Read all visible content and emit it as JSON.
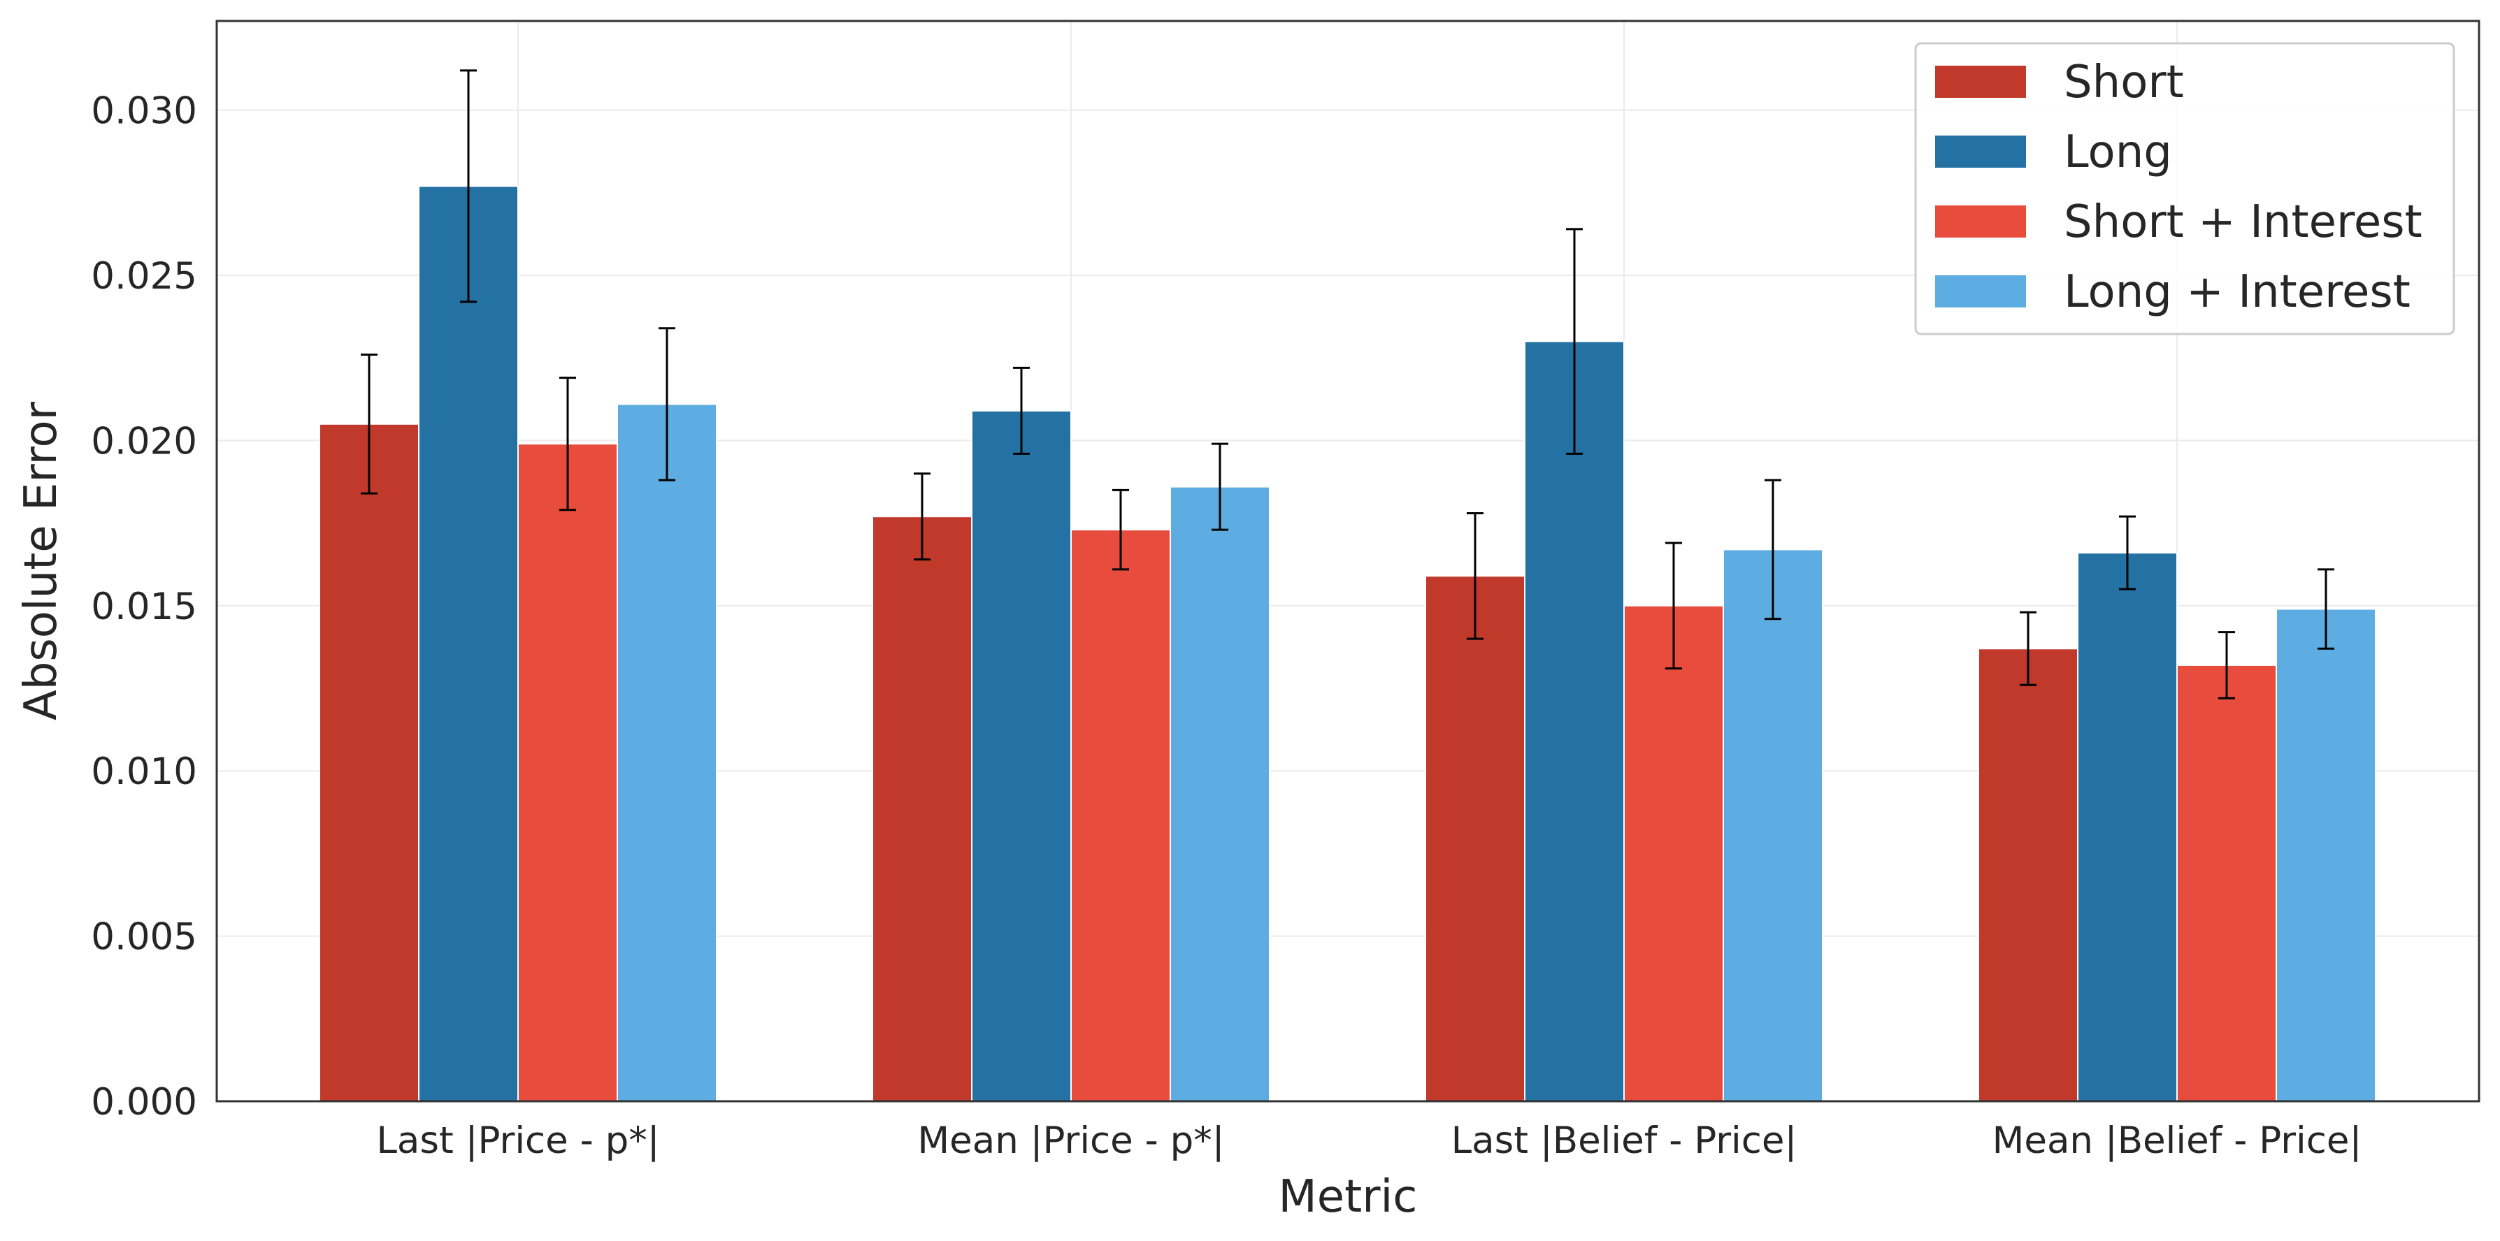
{
  "chart_data": {
    "type": "bar",
    "title": "",
    "xlabel": "Metric",
    "ylabel": "Absolute Error",
    "categories": [
      "Last |Price - p*|",
      "Mean |Price - p*|",
      "Last |Belief - Price|",
      "Mean |Belief - Price|"
    ],
    "series": [
      {
        "name": "Short",
        "color": "#c0392b",
        "values": [
          0.0205,
          0.0177,
          0.0159,
          0.0137
        ],
        "errors": [
          0.0021,
          0.0013,
          0.0019,
          0.0011
        ]
      },
      {
        "name": "Long",
        "color": "#2471a3",
        "values": [
          0.0277,
          0.0209,
          0.023,
          0.0166
        ],
        "errors": [
          0.0035,
          0.0013,
          0.0034,
          0.0011
        ]
      },
      {
        "name": "Short + Interest",
        "color": "#e74c3c",
        "values": [
          0.0199,
          0.0173,
          0.015,
          0.0132
        ],
        "errors": [
          0.002,
          0.0012,
          0.0019,
          0.001
        ]
      },
      {
        "name": "Long + Interest",
        "color": "#5dade2",
        "values": [
          0.0211,
          0.0186,
          0.0167,
          0.0149
        ],
        "errors": [
          0.0023,
          0.0013,
          0.0021,
          0.0012
        ]
      }
    ],
    "ylim": [
      0,
      0.0327
    ],
    "yticks": [
      "0.000",
      "0.005",
      "0.010",
      "0.015",
      "0.020",
      "0.025",
      "0.030"
    ],
    "ytick_values": [
      0,
      0.005,
      0.01,
      0.015,
      0.02,
      0.025,
      0.03
    ],
    "grid": true,
    "legend_position": "top-right"
  }
}
